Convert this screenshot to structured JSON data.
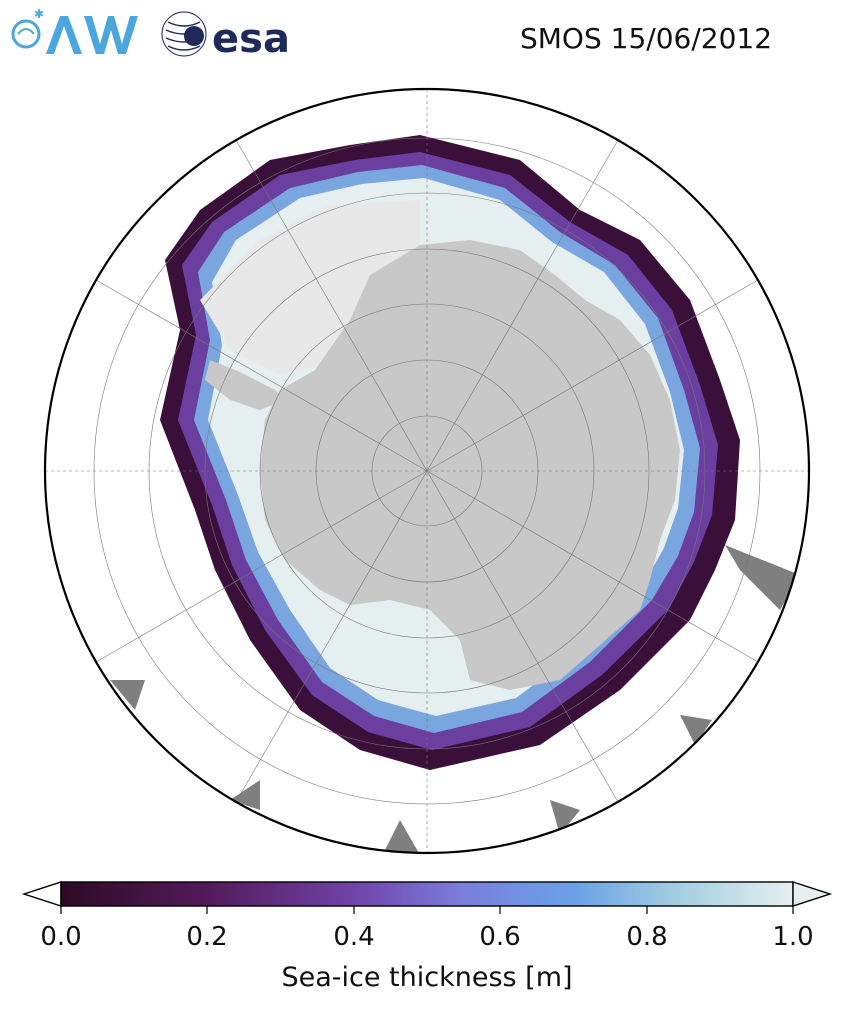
{
  "header": {
    "date_label": "SMOS 15/06/2012",
    "logo_awi": "AWI",
    "logo_esa": "esa"
  },
  "colors": {
    "ice_thin": "#2d0a26",
    "ice_mid": "#7a5cd0",
    "ice_thick": "#e6efef",
    "land": "#c8c8c8",
    "ice_shelf": "#e8e8e8",
    "no_data": "#7f7f7f",
    "awi_blue": "#4aa6dc",
    "esa_navy": "#1f2a5a"
  },
  "colorbar": {
    "label": "Sea-ice thickness [m]",
    "min": 0.0,
    "max": 1.0,
    "ticks": [
      "0.0",
      "0.2",
      "0.4",
      "0.6",
      "0.8",
      "1.0"
    ],
    "extend": "both"
  },
  "map": {
    "projection": "south-polar-stereographic",
    "graticule": true
  }
}
